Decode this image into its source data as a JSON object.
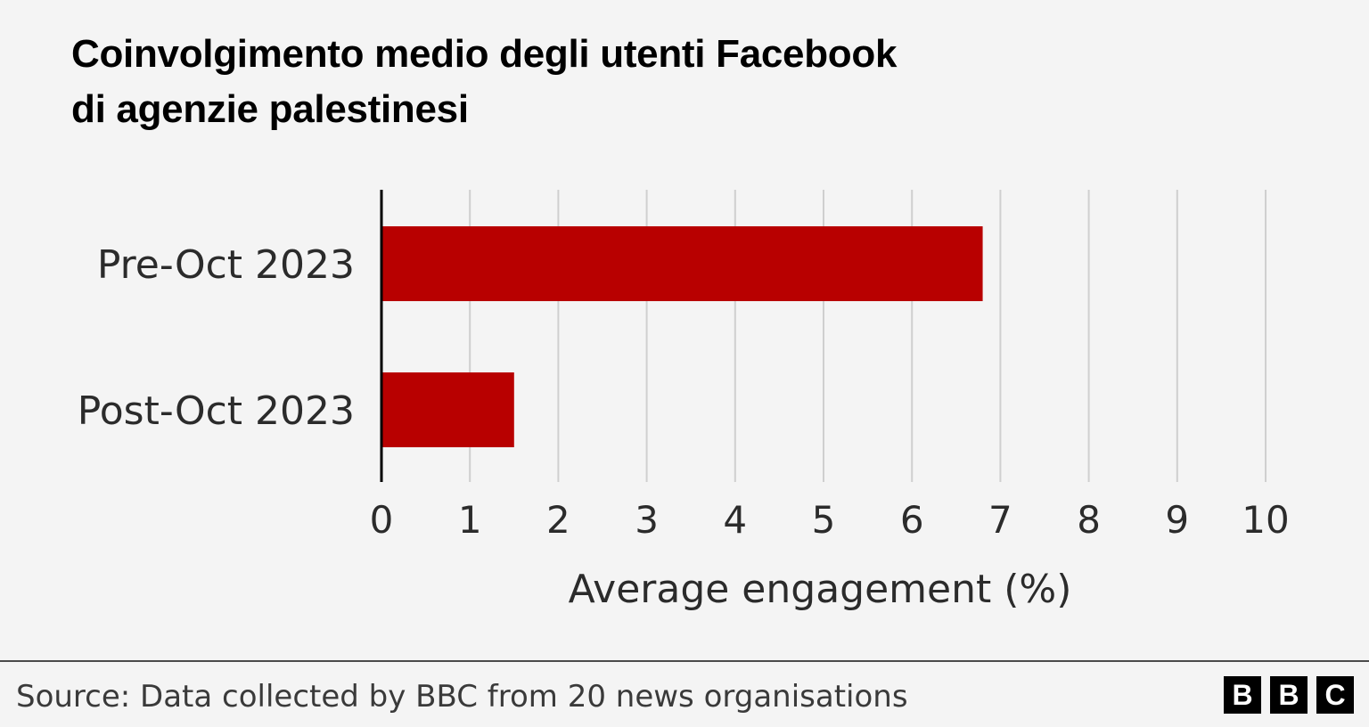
{
  "chart_data": {
    "type": "bar",
    "orientation": "horizontal",
    "title_lines": [
      "Coinvolgimento medio degli utenti Facebook",
      "di agenzie palestinesi"
    ],
    "categories": [
      "Pre-Oct 2023",
      "Post-Oct 2023"
    ],
    "values": [
      6.8,
      1.5
    ],
    "xlabel": "Average engagement (%)",
    "ylabel": "",
    "xlim": [
      0,
      10
    ],
    "xticks": [
      0,
      1,
      2,
      3,
      4,
      5,
      6,
      7,
      8,
      9,
      10
    ],
    "grid": "vertical",
    "legend": "none",
    "bar_color": "#b80000"
  },
  "footer": {
    "source": "Source: Data collected by BBC from 20 news organisations",
    "logo_letters": [
      "B",
      "B",
      "C"
    ]
  }
}
